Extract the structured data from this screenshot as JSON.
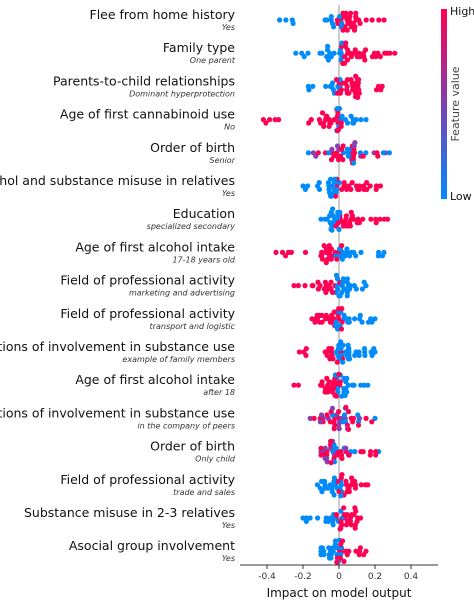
{
  "chart_data": {
    "type": "scatter",
    "subtype": "shap-beeswarm",
    "xlabel": "Impact on model output",
    "xlim": [
      -0.55,
      0.55
    ],
    "xticks": [
      -0.4,
      -0.2,
      0,
      0.2,
      0.4
    ],
    "xtick_labels": [
      "-0.4",
      "-0.2",
      "0",
      "0.2",
      "0.4"
    ],
    "colorbar": {
      "label": "Feature value",
      "high": "High",
      "low": "Low",
      "color_high": "#ff0052",
      "color_low": "#008bfb"
    },
    "zero_line": true,
    "features": [
      {
        "name": "Flee from home history",
        "sub": "Yes",
        "range": [
          -0.33,
          0.25
        ],
        "skew": 0.04,
        "pos_color": "high",
        "count": 42
      },
      {
        "name": "Family type",
        "sub": "One parent",
        "range": [
          -0.24,
          0.31
        ],
        "skew": 0.03,
        "pos_color": "high",
        "count": 48
      },
      {
        "name": "Parents-to-child relationships",
        "sub": "Dominant hyperprotection",
        "range": [
          -0.17,
          0.24
        ],
        "skew": 0.03,
        "pos_color": "high",
        "count": 46
      },
      {
        "name": "Age of first cannabinoid use",
        "sub": "No",
        "range": [
          -0.42,
          0.15
        ],
        "skew": 0.0,
        "pos_color": "low",
        "count": 44
      },
      {
        "name": "Order of birth",
        "sub": "Senior",
        "range": [
          -0.17,
          0.28
        ],
        "skew": 0.03,
        "pos_color": "mixed",
        "count": 46
      },
      {
        "name": "Alcohol and substance misuse in relatives",
        "sub": "Yes",
        "range": [
          -0.2,
          0.23
        ],
        "skew": 0.0,
        "pos_color": "high",
        "count": 44
      },
      {
        "name": "Education",
        "sub": "specialized secondary",
        "range": [
          -0.1,
          0.27
        ],
        "skew": 0.02,
        "pos_color": "high",
        "count": 44
      },
      {
        "name": "Age of first alcohol intake",
        "sub": "17-18 years old",
        "range": [
          -0.35,
          0.25
        ],
        "skew": -0.02,
        "pos_color": "low",
        "count": 44
      },
      {
        "name": "Field of professional activity",
        "sub": "marketing and advertising",
        "range": [
          -0.25,
          0.15
        ],
        "skew": 0.0,
        "pos_color": "low",
        "count": 44
      },
      {
        "name": "Field of professional activity",
        "sub": "transport and logistic",
        "range": [
          -0.15,
          0.2
        ],
        "skew": 0.0,
        "pos_color": "low",
        "count": 44
      },
      {
        "name": "Locations of involvement in substance use",
        "sub": "example of family members",
        "range": [
          -0.22,
          0.2
        ],
        "skew": 0.0,
        "pos_color": "low",
        "count": 46
      },
      {
        "name": "Age of first alcohol intake",
        "sub": "after 18",
        "range": [
          -0.25,
          0.16
        ],
        "skew": -0.01,
        "pos_color": "low",
        "count": 46
      },
      {
        "name": "Locations of involvement in substance use",
        "sub": "in the company of peers",
        "range": [
          -0.16,
          0.2
        ],
        "skew": 0.0,
        "pos_color": "mixed",
        "count": 44
      },
      {
        "name": "Order of birth",
        "sub": "Only child",
        "range": [
          -0.1,
          0.22
        ],
        "skew": 0.0,
        "pos_color": "mixed",
        "count": 42
      },
      {
        "name": "Field of professional activity",
        "sub": "trade and sales",
        "range": [
          -0.12,
          0.16
        ],
        "skew": 0.0,
        "pos_color": "high",
        "count": 42
      },
      {
        "name": "Substance misuse in 2-3 relatives",
        "sub": "Yes",
        "range": [
          -0.2,
          0.12
        ],
        "skew": 0.0,
        "pos_color": "high",
        "count": 40
      },
      {
        "name": "Asocial group involvement",
        "sub": "Yes",
        "range": [
          -0.1,
          0.15
        ],
        "skew": 0.0,
        "pos_color": "high",
        "count": 40
      }
    ]
  }
}
